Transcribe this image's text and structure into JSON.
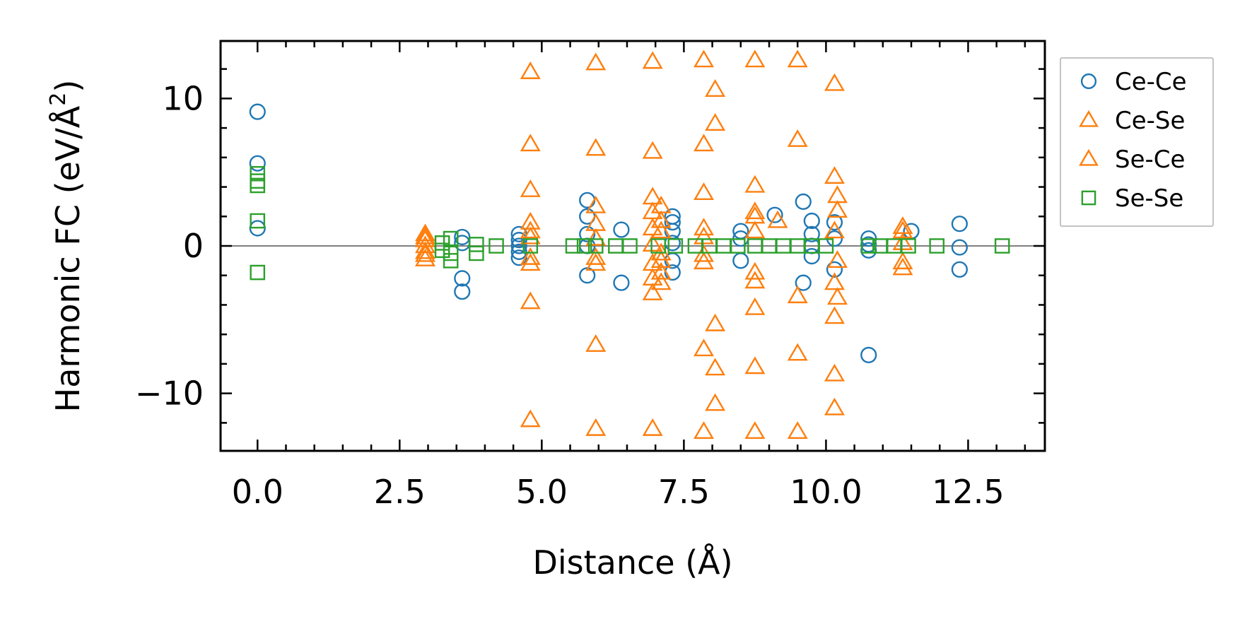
{
  "chart_data": {
    "type": "scatter",
    "title": "",
    "xlabel": "Distance (Å)",
    "ylabel_main": "Harmonic FC (eV/Å",
    "ylabel_sup": "2",
    "ylabel_close": ")",
    "xlim": [
      -0.65,
      13.85
    ],
    "ylim": [
      -13.9,
      13.9
    ],
    "xticks": [
      0.0,
      2.5,
      5.0,
      7.5,
      10.0,
      12.5
    ],
    "xtick_labels": [
      "0.0",
      "2.5",
      "5.0",
      "7.5",
      "10.0",
      "12.5"
    ],
    "yticks": [
      -10,
      0,
      10
    ],
    "ytick_labels": [
      "−10",
      "0",
      "10"
    ],
    "zero_line": true,
    "legend_position": "outside-right-top",
    "colors": {
      "Ce-Ce": "#1f77b4",
      "Ce-Se": "#ff7f0e",
      "Se-Ce": "#ff7f0e",
      "Se-Se": "#2ca02c"
    },
    "series": [
      {
        "name": "Ce-Ce",
        "marker": "circle",
        "color": "#1f77b4",
        "points": [
          [
            0.0,
            9.1
          ],
          [
            0.0,
            5.6
          ],
          [
            0.0,
            1.2
          ],
          [
            3.6,
            0.6
          ],
          [
            3.6,
            0.2
          ],
          [
            3.6,
            -2.2
          ],
          [
            3.6,
            -3.1
          ],
          [
            4.6,
            0.8
          ],
          [
            4.6,
            0.4
          ],
          [
            4.6,
            0.0
          ],
          [
            4.6,
            -0.4
          ],
          [
            4.6,
            -0.8
          ],
          [
            5.8,
            3.1
          ],
          [
            5.8,
            2.0
          ],
          [
            5.8,
            0.8
          ],
          [
            5.8,
            0.0
          ],
          [
            5.8,
            -2.0
          ],
          [
            6.4,
            1.1
          ],
          [
            6.4,
            -2.5
          ],
          [
            7.3,
            2.0
          ],
          [
            7.3,
            1.6
          ],
          [
            7.3,
            1.0
          ],
          [
            7.3,
            0.2
          ],
          [
            7.3,
            -1.0
          ],
          [
            7.3,
            -1.8
          ],
          [
            8.5,
            1.0
          ],
          [
            8.5,
            0.5
          ],
          [
            8.5,
            -1.0
          ],
          [
            9.1,
            2.1
          ],
          [
            9.6,
            3.0
          ],
          [
            9.6,
            -2.5
          ],
          [
            9.75,
            1.7
          ],
          [
            9.75,
            0.8
          ],
          [
            9.75,
            0.0
          ],
          [
            9.75,
            -0.7
          ],
          [
            10.15,
            1.6
          ],
          [
            10.15,
            0.5
          ],
          [
            10.15,
            -1.6
          ],
          [
            10.75,
            0.5
          ],
          [
            10.75,
            0.1
          ],
          [
            10.75,
            -0.3
          ],
          [
            10.75,
            -7.4
          ],
          [
            11.5,
            1.0
          ],
          [
            12.35,
            1.5
          ],
          [
            12.35,
            -0.1
          ],
          [
            12.35,
            -1.6
          ]
        ]
      },
      {
        "name": "Ce-Se",
        "marker": "triangle",
        "color": "#ff7f0e",
        "points": [
          [
            2.95,
            0.8
          ],
          [
            2.95,
            0.4
          ],
          [
            2.95,
            0.0
          ],
          [
            2.95,
            -0.4
          ],
          [
            2.95,
            -0.9
          ],
          [
            4.8,
            11.8
          ],
          [
            4.8,
            6.9
          ],
          [
            4.8,
            3.8
          ],
          [
            4.8,
            1.6
          ],
          [
            4.8,
            0.6
          ],
          [
            4.8,
            -1.2
          ],
          [
            4.8,
            -3.8
          ],
          [
            4.8,
            -11.8
          ],
          [
            5.95,
            12.4
          ],
          [
            5.95,
            6.6
          ],
          [
            5.95,
            2.7
          ],
          [
            5.95,
            0.5
          ],
          [
            5.95,
            -1.2
          ],
          [
            5.95,
            -6.7
          ],
          [
            5.95,
            -12.4
          ],
          [
            6.95,
            12.5
          ],
          [
            6.95,
            6.4
          ],
          [
            6.95,
            3.3
          ],
          [
            6.95,
            1.2
          ],
          [
            6.95,
            0.1
          ],
          [
            6.95,
            -1.2
          ],
          [
            6.95,
            -3.2
          ],
          [
            6.95,
            -12.4
          ],
          [
            7.1,
            2.7
          ],
          [
            7.1,
            1.7
          ],
          [
            7.1,
            -0.5
          ],
          [
            7.1,
            -1.8
          ],
          [
            7.1,
            -2.5
          ],
          [
            7.85,
            12.6
          ],
          [
            7.85,
            6.9
          ],
          [
            7.85,
            3.6
          ],
          [
            7.85,
            1.2
          ],
          [
            7.85,
            -1.1
          ],
          [
            7.85,
            -7.0
          ],
          [
            7.85,
            -12.6
          ],
          [
            8.05,
            10.6
          ],
          [
            8.05,
            8.3
          ],
          [
            8.05,
            -5.3
          ],
          [
            8.05,
            -8.3
          ],
          [
            8.05,
            -10.7
          ],
          [
            8.75,
            12.6
          ],
          [
            8.75,
            4.1
          ],
          [
            8.75,
            2.3
          ],
          [
            8.75,
            1.0
          ],
          [
            8.75,
            -1.8
          ],
          [
            8.75,
            -4.2
          ],
          [
            8.75,
            -8.2
          ],
          [
            8.75,
            -12.6
          ],
          [
            9.5,
            12.6
          ],
          [
            9.5,
            7.2
          ],
          [
            9.5,
            -3.4
          ],
          [
            9.5,
            -7.3
          ],
          [
            9.5,
            -12.6
          ],
          [
            10.15,
            11.0
          ],
          [
            10.15,
            4.7
          ],
          [
            10.15,
            1.0
          ],
          [
            10.15,
            -2.5
          ],
          [
            10.15,
            -4.8
          ],
          [
            10.15,
            -8.7
          ],
          [
            10.15,
            -11.0
          ],
          [
            11.35,
            1.3
          ],
          [
            11.35,
            0.2
          ],
          [
            11.35,
            -1.5
          ]
        ]
      },
      {
        "name": "Se-Ce",
        "marker": "triangle",
        "color": "#ff7f0e",
        "points": [
          [
            2.95,
            0.6
          ],
          [
            2.95,
            -0.6
          ],
          [
            4.8,
            1.0
          ],
          [
            4.8,
            -0.8
          ],
          [
            5.95,
            1.5
          ],
          [
            5.95,
            -0.8
          ],
          [
            6.95,
            2.3
          ],
          [
            6.95,
            -2.2
          ],
          [
            7.1,
            1.0
          ],
          [
            7.1,
            -1.0
          ],
          [
            7.85,
            0.6
          ],
          [
            7.85,
            -0.6
          ],
          [
            8.75,
            2.0
          ],
          [
            8.75,
            -2.4
          ],
          [
            9.15,
            1.7
          ],
          [
            10.2,
            3.4
          ],
          [
            10.2,
            2.4
          ],
          [
            10.2,
            -1.0
          ],
          [
            10.2,
            -3.5
          ],
          [
            11.35,
            1.0
          ],
          [
            11.35,
            -1.1
          ]
        ]
      },
      {
        "name": "Se-Se",
        "marker": "square",
        "color": "#2ca02c",
        "points": [
          [
            0.0,
            4.9
          ],
          [
            0.0,
            4.4
          ],
          [
            0.0,
            4.1
          ],
          [
            0.0,
            1.7
          ],
          [
            0.0,
            -1.8
          ],
          [
            3.25,
            0.2
          ],
          [
            3.25,
            -0.3
          ],
          [
            3.4,
            0.5
          ],
          [
            3.4,
            -0.5
          ],
          [
            3.4,
            -1.0
          ],
          [
            3.85,
            0.1
          ],
          [
            3.85,
            -0.5
          ],
          [
            4.2,
            0.0
          ],
          [
            4.8,
            0.0
          ],
          [
            5.55,
            0.0
          ],
          [
            5.75,
            0.0
          ],
          [
            5.95,
            0.0
          ],
          [
            6.3,
            0.0
          ],
          [
            6.55,
            0.0
          ],
          [
            7.05,
            0.0
          ],
          [
            7.35,
            0.0
          ],
          [
            7.7,
            0.0
          ],
          [
            7.95,
            0.0
          ],
          [
            8.2,
            0.0
          ],
          [
            8.45,
            0.0
          ],
          [
            8.75,
            0.0
          ],
          [
            9.0,
            0.0
          ],
          [
            9.25,
            0.0
          ],
          [
            9.5,
            0.0
          ],
          [
            9.75,
            0.0
          ],
          [
            10.0,
            0.0
          ],
          [
            10.75,
            0.0
          ],
          [
            10.95,
            0.0
          ],
          [
            11.2,
            0.0
          ],
          [
            11.45,
            0.0
          ],
          [
            11.95,
            0.0
          ],
          [
            13.1,
            0.0
          ]
        ]
      }
    ]
  }
}
